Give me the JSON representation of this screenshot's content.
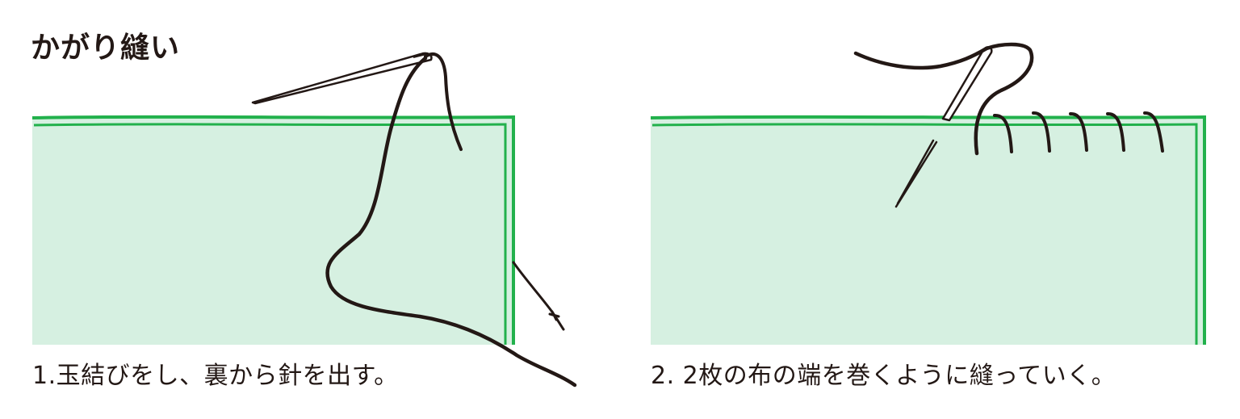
{
  "title": "かがり縫い",
  "steps": [
    {
      "caption": "1.玉結びをし、裏から針を出す。"
    },
    {
      "caption": "2. 2枚の布の端を巻くように縫っていく。"
    }
  ],
  "colors": {
    "fabric_fill": "#d6f0e1",
    "fabric_edge": "#22b14c",
    "thread": "#231815",
    "needle": "#231815",
    "text": "#231815"
  }
}
